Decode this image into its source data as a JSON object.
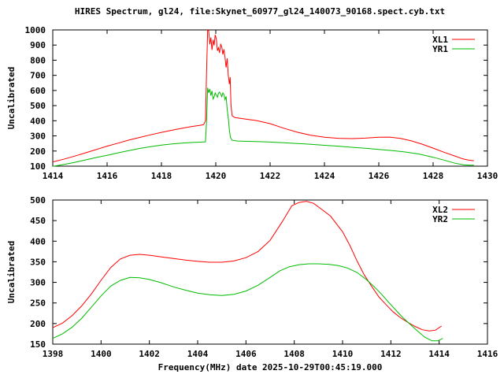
{
  "title": "HIRES Spectrum, gl24, file:Skynet_60977_gl24_140073_90168.spect.cyb.txt",
  "colors": {
    "background": "#ffffff",
    "frame": "#000000",
    "text": "#000000",
    "xl_series": "#ff0000",
    "yr_series": "#00bb00"
  },
  "chart_data": [
    {
      "type": "line",
      "title": "",
      "xlabel": "",
      "ylabel": "Uncalibrated",
      "xlim": [
        1414,
        1430
      ],
      "ylim": [
        100,
        1000
      ],
      "xtick_step": 2,
      "ytick_step": 100,
      "xticks": [
        1414,
        1416,
        1418,
        1420,
        1422,
        1424,
        1426,
        1428,
        1430
      ],
      "yticks": [
        100,
        200,
        300,
        400,
        500,
        600,
        700,
        800,
        900,
        1000
      ],
      "grid": false,
      "legend_position": "top-right-inside",
      "series": [
        {
          "name": "XL1",
          "color": "#ff0000",
          "points": [
            [
              1414,
              128
            ],
            [
              1414.4,
              146
            ],
            [
              1414.8,
              166
            ],
            [
              1415.2,
              188
            ],
            [
              1415.6,
              210
            ],
            [
              1416,
              232
            ],
            [
              1416.4,
              252
            ],
            [
              1416.8,
              272
            ],
            [
              1417.2,
              290
            ],
            [
              1417.6,
              307
            ],
            [
              1418,
              323
            ],
            [
              1418.4,
              338
            ],
            [
              1418.8,
              352
            ],
            [
              1419.1,
              361
            ],
            [
              1419.4,
              369
            ],
            [
              1419.55,
              374
            ],
            [
              1419.62,
              400
            ],
            [
              1419.66,
              720
            ],
            [
              1419.7,
              1000
            ],
            [
              1419.74,
              995
            ],
            [
              1419.78,
              905
            ],
            [
              1419.82,
              950
            ],
            [
              1419.86,
              868
            ],
            [
              1419.9,
              935
            ],
            [
              1419.94,
              898
            ],
            [
              1419.98,
              968
            ],
            [
              1420.02,
              940
            ],
            [
              1420.06,
              862
            ],
            [
              1420.1,
              882
            ],
            [
              1420.14,
              848
            ],
            [
              1420.18,
              905
            ],
            [
              1420.22,
              888
            ],
            [
              1420.26,
              838
            ],
            [
              1420.3,
              872
            ],
            [
              1420.34,
              820
            ],
            [
              1420.38,
              752
            ],
            [
              1420.42,
              812
            ],
            [
              1420.46,
              700
            ],
            [
              1420.5,
              642
            ],
            [
              1420.53,
              688
            ],
            [
              1420.56,
              505
            ],
            [
              1420.6,
              434
            ],
            [
              1420.7,
              421
            ],
            [
              1421,
              413
            ],
            [
              1421.5,
              401
            ],
            [
              1422,
              381
            ],
            [
              1422.5,
              351
            ],
            [
              1423,
              324
            ],
            [
              1423.5,
              304
            ],
            [
              1424,
              291
            ],
            [
              1424.5,
              284
            ],
            [
              1425,
              282
            ],
            [
              1425.5,
              285
            ],
            [
              1426,
              291
            ],
            [
              1426.4,
              292
            ],
            [
              1426.8,
              283
            ],
            [
              1427.2,
              267
            ],
            [
              1427.6,
              245
            ],
            [
              1428,
              219
            ],
            [
              1428.4,
              192
            ],
            [
              1428.8,
              167
            ],
            [
              1429.1,
              148
            ],
            [
              1429.3,
              140
            ],
            [
              1429.5,
              136
            ]
          ]
        },
        {
          "name": "YR1",
          "color": "#00bb00",
          "points": [
            [
              1414,
              99
            ],
            [
              1414.4,
              111
            ],
            [
              1414.8,
              125
            ],
            [
              1415.2,
              141
            ],
            [
              1415.6,
              157
            ],
            [
              1416,
              172
            ],
            [
              1416.4,
              188
            ],
            [
              1416.8,
              203
            ],
            [
              1417.2,
              217
            ],
            [
              1417.6,
              229
            ],
            [
              1418,
              239
            ],
            [
              1418.4,
              247
            ],
            [
              1418.8,
              253
            ],
            [
              1419.2,
              257
            ],
            [
              1419.5,
              259
            ],
            [
              1419.62,
              261
            ],
            [
              1419.66,
              400
            ],
            [
              1419.7,
              618
            ],
            [
              1419.74,
              585
            ],
            [
              1419.78,
              610
            ],
            [
              1419.82,
              566
            ],
            [
              1419.86,
              597
            ],
            [
              1419.9,
              544
            ],
            [
              1419.94,
              558
            ],
            [
              1419.98,
              584
            ],
            [
              1420.02,
              570
            ],
            [
              1420.06,
              555
            ],
            [
              1420.1,
              581
            ],
            [
              1420.14,
              589
            ],
            [
              1420.18,
              577
            ],
            [
              1420.22,
              559
            ],
            [
              1420.26,
              584
            ],
            [
              1420.3,
              574
            ],
            [
              1420.34,
              539
            ],
            [
              1420.38,
              561
            ],
            [
              1420.42,
              476
            ],
            [
              1420.46,
              418
            ],
            [
              1420.5,
              338
            ],
            [
              1420.54,
              290
            ],
            [
              1420.6,
              271
            ],
            [
              1420.8,
              266
            ],
            [
              1421.2,
              264
            ],
            [
              1421.6,
              262
            ],
            [
              1422,
              259
            ],
            [
              1422.5,
              255
            ],
            [
              1423,
              250
            ],
            [
              1423.5,
              244
            ],
            [
              1424,
              238
            ],
            [
              1424.5,
              232
            ],
            [
              1425,
              225
            ],
            [
              1425.5,
              218
            ],
            [
              1426,
              211
            ],
            [
              1426.5,
              203
            ],
            [
              1427,
              193
            ],
            [
              1427.5,
              179
            ],
            [
              1428,
              159
            ],
            [
              1428.4,
              140
            ],
            [
              1428.8,
              120
            ],
            [
              1429.1,
              110
            ],
            [
              1429.3,
              107
            ],
            [
              1429.5,
              106
            ]
          ]
        }
      ]
    },
    {
      "type": "line",
      "title": "",
      "xlabel": "Frequency(MHz) date 2025-10-29T00:45:19.000",
      "ylabel": "Uncalibrated",
      "xlim": [
        1398,
        1416
      ],
      "ylim": [
        150,
        500
      ],
      "xtick_step": 2,
      "ytick_step": 50,
      "xticks": [
        1398,
        1400,
        1402,
        1404,
        1406,
        1408,
        1410,
        1412,
        1414,
        1416
      ],
      "yticks": [
        150,
        200,
        250,
        300,
        350,
        400,
        450,
        500
      ],
      "grid": false,
      "legend_position": "top-right-inside",
      "series": [
        {
          "name": "XL2",
          "color": "#ff0000",
          "points": [
            [
              1398,
              190
            ],
            [
              1398.4,
              201
            ],
            [
              1398.8,
              219
            ],
            [
              1399.2,
              243
            ],
            [
              1399.6,
              272
            ],
            [
              1400,
              305
            ],
            [
              1400.4,
              336
            ],
            [
              1400.8,
              357
            ],
            [
              1401.2,
              366
            ],
            [
              1401.6,
              368
            ],
            [
              1402,
              366
            ],
            [
              1402.5,
              362
            ],
            [
              1403,
              358
            ],
            [
              1403.5,
              354
            ],
            [
              1404,
              351
            ],
            [
              1404.5,
              349
            ],
            [
              1405,
              349
            ],
            [
              1405.5,
              352
            ],
            [
              1406,
              360
            ],
            [
              1406.5,
              375
            ],
            [
              1407,
              402
            ],
            [
              1407.5,
              447
            ],
            [
              1407.9,
              486
            ],
            [
              1408.2,
              494
            ],
            [
              1408.5,
              497
            ],
            [
              1408.8,
              492
            ],
            [
              1409.1,
              479
            ],
            [
              1409.5,
              461
            ],
            [
              1410,
              423
            ],
            [
              1410.3,
              390
            ],
            [
              1410.6,
              352
            ],
            [
              1410.9,
              318
            ],
            [
              1411.2,
              291
            ],
            [
              1411.5,
              265
            ],
            [
              1411.8,
              246
            ],
            [
              1412.1,
              228
            ],
            [
              1412.4,
              214
            ],
            [
              1412.7,
              203
            ],
            [
              1413,
              193
            ],
            [
              1413.3,
              185
            ],
            [
              1413.6,
              182
            ],
            [
              1413.85,
              184
            ],
            [
              1414.1,
              194
            ]
          ]
        },
        {
          "name": "YR2",
          "color": "#00bb00",
          "points": [
            [
              1398,
              164
            ],
            [
              1398.4,
              175
            ],
            [
              1398.8,
              191
            ],
            [
              1399.2,
              213
            ],
            [
              1399.6,
              240
            ],
            [
              1400,
              267
            ],
            [
              1400.4,
              291
            ],
            [
              1400.8,
              305
            ],
            [
              1401.2,
              312
            ],
            [
              1401.6,
              311
            ],
            [
              1402,
              307
            ],
            [
              1402.5,
              299
            ],
            [
              1403,
              289
            ],
            [
              1403.5,
              281
            ],
            [
              1404,
              274
            ],
            [
              1404.5,
              270
            ],
            [
              1405,
              268
            ],
            [
              1405.5,
              271
            ],
            [
              1406,
              279
            ],
            [
              1406.5,
              293
            ],
            [
              1407,
              312
            ],
            [
              1407.4,
              328
            ],
            [
              1407.8,
              338
            ],
            [
              1408.2,
              343
            ],
            [
              1408.6,
              345
            ],
            [
              1409,
              345
            ],
            [
              1409.4,
              344
            ],
            [
              1409.8,
              341
            ],
            [
              1410.2,
              335
            ],
            [
              1410.6,
              324
            ],
            [
              1411,
              306
            ],
            [
              1411.3,
              290
            ],
            [
              1411.6,
              272
            ],
            [
              1411.9,
              252
            ],
            [
              1412.2,
              233
            ],
            [
              1412.5,
              214
            ],
            [
              1412.8,
              198
            ],
            [
              1413.1,
              182
            ],
            [
              1413.4,
              167
            ],
            [
              1413.7,
              158
            ],
            [
              1413.95,
              158
            ],
            [
              1414.15,
              164
            ]
          ]
        }
      ]
    }
  ]
}
